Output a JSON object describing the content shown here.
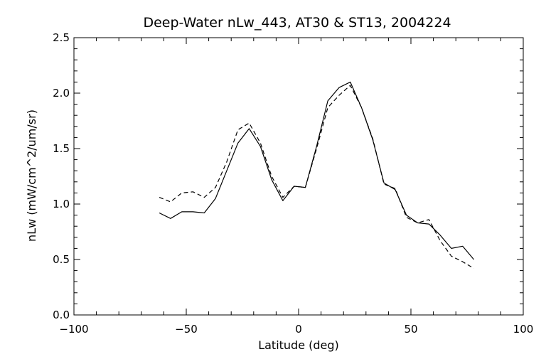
{
  "chart_data": {
    "type": "line",
    "title": "Deep-Water nLw_443, AT30 & ST13, 2004224",
    "xlabel": "Latitude (deg)",
    "ylabel": "nLw (mW/cm^2/um/sr)",
    "xlim": [
      -100,
      100
    ],
    "ylim": [
      0,
      2.5
    ],
    "x_ticks": [
      -100,
      -50,
      0,
      50,
      100
    ],
    "x_tick_labels": [
      "−100",
      "−50",
      "0",
      "50",
      "100"
    ],
    "y_ticks": [
      0,
      0.5,
      1,
      1.5,
      2,
      2.5
    ],
    "y_tick_labels": [
      "0.0",
      "0.5",
      "1.0",
      "1.5",
      "2.0",
      "2.5"
    ],
    "grid": false,
    "legend": "none",
    "series": [
      {
        "style": "solid",
        "color": "#000000",
        "x": [
          -62,
          -57,
          -52,
          -47,
          -42,
          -37,
          -32,
          -27,
          -22,
          -17,
          -12,
          -7,
          -2,
          3,
          8,
          13,
          18,
          23,
          28,
          33,
          38,
          43,
          48,
          53,
          58,
          63,
          68,
          73,
          78
        ],
        "y": [
          0.92,
          0.87,
          0.93,
          0.93,
          0.92,
          1.05,
          1.3,
          1.55,
          1.68,
          1.52,
          1.22,
          1.03,
          1.16,
          1.15,
          1.52,
          1.93,
          2.05,
          2.1,
          1.87,
          1.58,
          1.19,
          1.13,
          0.9,
          0.83,
          0.82,
          0.72,
          0.6,
          0.62,
          0.5
        ]
      },
      {
        "style": "dashed",
        "color": "#000000",
        "x": [
          -62,
          -57,
          -52,
          -47,
          -42,
          -37,
          -32,
          -27,
          -22,
          -17,
          -12,
          -7,
          -2,
          3,
          8,
          13,
          18,
          23,
          28,
          33,
          38,
          43,
          48,
          53,
          58,
          63,
          68,
          73,
          78
        ],
        "y": [
          1.06,
          1.02,
          1.1,
          1.11,
          1.06,
          1.15,
          1.38,
          1.67,
          1.73,
          1.55,
          1.25,
          1.06,
          1.16,
          1.15,
          1.5,
          1.87,
          1.98,
          2.07,
          1.87,
          1.59,
          1.18,
          1.14,
          0.88,
          0.83,
          0.86,
          0.67,
          0.53,
          0.48,
          0.42
        ]
      }
    ]
  }
}
